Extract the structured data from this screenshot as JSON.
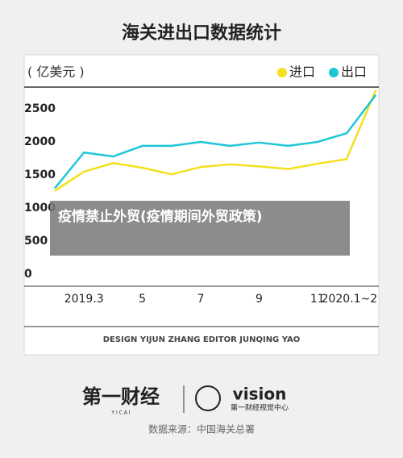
{
  "chart_data": {
    "type": "line",
    "title": "海关进出口数据统计",
    "unit": "( 亿美元 )",
    "categories": [
      null,
      "2019.3",
      null,
      "5",
      null,
      "7",
      null,
      "9",
      null,
      "11",
      null,
      "2020.1~2"
    ],
    "series": [
      {
        "name": "进口",
        "color": "#f5df1e",
        "values": [
          1260,
          1550,
          1680,
          1610,
          1510,
          1620,
          1660,
          1630,
          1590,
          1670,
          1740,
          2780
        ]
      },
      {
        "name": "出口",
        "color": "#1fc6d6",
        "values": [
          1300,
          1840,
          1780,
          1940,
          1940,
          2000,
          1940,
          1990,
          1940,
          2000,
          2130,
          2710
        ]
      }
    ],
    "ylim": [
      0,
      2800
    ],
    "yticks": [
      0,
      500,
      1000,
      1500,
      2000,
      2500
    ]
  },
  "credits": "DESIGN YIJUN ZHANG   EDITOR JUNQING YAO",
  "logo_left": "第一财经",
  "logo_left_sub": "Y I C A I",
  "logo_right": "vision",
  "logo_right_sub": "第一财经视觉中心",
  "source": "数据来源：中国海关总署",
  "overlay_text": "疫情禁止外贸(疫情期间外贸政策)"
}
